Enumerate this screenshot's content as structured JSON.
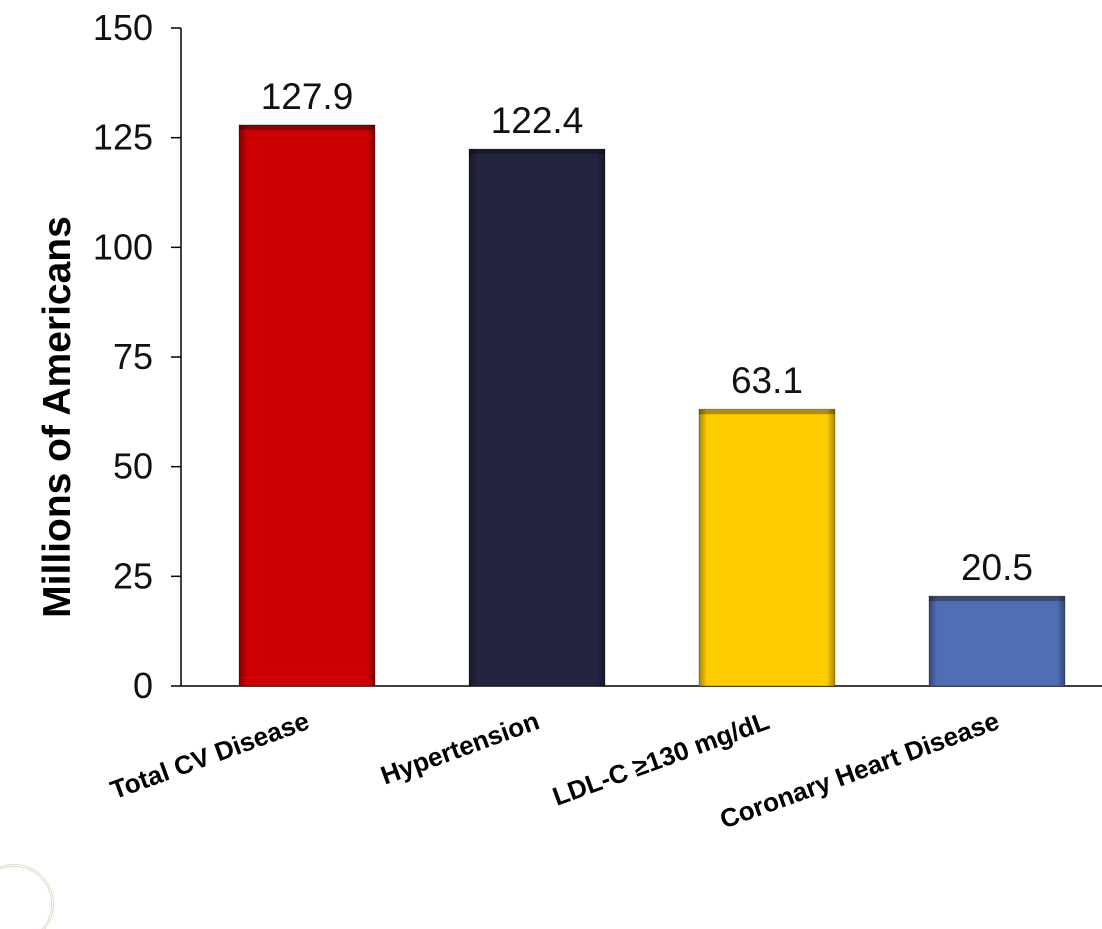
{
  "chart_data": {
    "type": "bar",
    "ylabel": "Millions of Americans",
    "xlabel": "",
    "ylim": [
      0,
      150
    ],
    "yticks": [
      0,
      25,
      50,
      75,
      100,
      125,
      150
    ],
    "grid": false,
    "categories": [
      "Total CV Disease",
      "Hypertension",
      "LDL-C ≥130 mg/dL",
      "Coronary Heart Disease"
    ],
    "values": [
      127.9,
      122.4,
      63.1,
      20.5
    ],
    "value_labels": [
      "127.9",
      "122.4",
      "63.1",
      "20.5"
    ],
    "colors": [
      "#cc0000",
      "#222440",
      "#ffcc00",
      "#4f6eb4"
    ]
  }
}
